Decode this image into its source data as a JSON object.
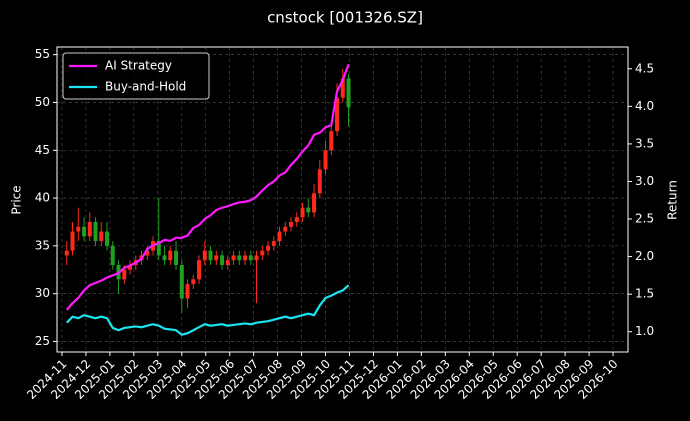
{
  "chart_data": {
    "type": "candlestick",
    "title": "cnstock [001326.SZ]",
    "ylabel": "Price",
    "y2label": "Return",
    "x": [
      2024.85,
      2024.87,
      2024.89,
      2024.91,
      2024.93,
      2024.95,
      2024.97,
      2024.99,
      2025.01,
      2025.03,
      2025.05,
      2025.07,
      2025.09,
      2025.11,
      2025.13,
      2025.15,
      2025.17,
      2025.19,
      2025.21,
      2025.23,
      2025.25,
      2025.27,
      2025.29,
      2025.31,
      2025.33,
      2025.35,
      2025.37,
      2025.39,
      2025.41,
      2025.43,
      2025.45,
      2025.47,
      2025.49,
      2025.51,
      2025.53,
      2025.55,
      2025.57,
      2025.59,
      2025.61,
      2025.63,
      2025.65,
      2025.67,
      2025.69,
      2025.71,
      2025.73,
      2025.75,
      2025.77,
      2025.79,
      2025.81,
      2025.83
    ],
    "open": [
      34.0,
      34.5,
      36.5,
      37.0,
      36.0,
      37.5,
      35.5,
      36.5,
      35.0,
      33.0,
      31.5,
      32.5,
      33.0,
      33.5,
      34.0,
      34.5,
      35.5,
      34.0,
      33.5,
      34.5,
      33.0,
      29.5,
      31.0,
      31.5,
      33.5,
      34.5,
      33.5,
      34.0,
      33.0,
      33.5,
      34.0,
      33.5,
      34.0,
      33.5,
      34.0,
      34.5,
      35.0,
      35.5,
      36.5,
      37.0,
      37.5,
      38.0,
      39.0,
      38.5,
      40.5,
      43.0,
      45.0,
      47.0,
      50.5,
      52.5
    ],
    "high": [
      35.5,
      37.5,
      39.0,
      38.0,
      38.5,
      38.0,
      37.5,
      37.5,
      35.5,
      33.5,
      33.0,
      33.5,
      34.0,
      34.5,
      35.0,
      36.0,
      40.0,
      35.0,
      35.0,
      35.5,
      33.5,
      31.5,
      32.0,
      34.0,
      35.5,
      35.0,
      34.5,
      34.5,
      34.0,
      34.5,
      34.5,
      34.5,
      34.5,
      34.5,
      35.0,
      35.5,
      36.0,
      37.0,
      37.5,
      38.0,
      38.5,
      39.5,
      40.0,
      41.5,
      44.0,
      46.0,
      48.0,
      52.0,
      53.5,
      53.0
    ],
    "low": [
      33.0,
      34.0,
      35.5,
      35.5,
      35.5,
      35.0,
      35.0,
      34.5,
      32.5,
      30.0,
      31.0,
      32.0,
      32.5,
      33.0,
      33.5,
      34.0,
      33.5,
      33.0,
      33.0,
      32.5,
      28.0,
      28.5,
      30.5,
      31.0,
      33.0,
      33.0,
      33.0,
      32.5,
      32.5,
      33.0,
      33.0,
      33.0,
      33.0,
      29.0,
      33.5,
      34.0,
      34.5,
      35.0,
      36.0,
      36.5,
      37.0,
      37.5,
      38.0,
      38.0,
      40.0,
      42.5,
      44.5,
      46.5,
      50.0,
      47.5
    ],
    "close": [
      34.5,
      36.5,
      37.0,
      36.0,
      37.5,
      35.5,
      36.5,
      35.0,
      33.0,
      31.5,
      32.5,
      33.0,
      33.5,
      34.0,
      34.5,
      35.5,
      34.0,
      33.5,
      34.5,
      33.0,
      29.5,
      31.0,
      31.5,
      33.5,
      34.5,
      33.5,
      34.0,
      33.0,
      33.5,
      34.0,
      33.5,
      34.0,
      33.5,
      34.0,
      34.5,
      35.0,
      35.5,
      36.5,
      37.0,
      37.5,
      38.0,
      39.0,
      38.5,
      40.5,
      43.0,
      45.0,
      47.0,
      50.5,
      52.5,
      49.5
    ],
    "up_color": "#ff2a1a",
    "down_color": "#1fa11f",
    "series": [
      {
        "name": "AI Strategy",
        "color": "#ff1aff",
        "axis": "y2",
        "values": [
          1.29,
          1.38,
          1.45,
          1.55,
          1.62,
          1.65,
          1.68,
          1.72,
          1.75,
          1.78,
          1.85,
          1.88,
          1.92,
          1.97,
          2.1,
          2.15,
          2.18,
          2.22,
          2.21,
          2.25,
          2.25,
          2.28,
          2.38,
          2.42,
          2.5,
          2.55,
          2.62,
          2.65,
          2.67,
          2.7,
          2.72,
          2.73,
          2.75,
          2.8,
          2.88,
          2.95,
          3.0,
          3.08,
          3.12,
          3.22,
          3.3,
          3.4,
          3.48,
          3.62,
          3.65,
          3.72,
          3.75,
          4.2,
          4.35,
          4.56
        ]
      },
      {
        "name": "Buy-and-Hold",
        "color": "#1ae5f0",
        "axis": "y2",
        "values": [
          1.12,
          1.2,
          1.18,
          1.22,
          1.2,
          1.18,
          1.2,
          1.18,
          1.05,
          1.02,
          1.05,
          1.06,
          1.07,
          1.06,
          1.08,
          1.1,
          1.08,
          1.04,
          1.03,
          1.02,
          0.96,
          0.98,
          1.02,
          1.06,
          1.1,
          1.08,
          1.09,
          1.1,
          1.08,
          1.09,
          1.1,
          1.11,
          1.1,
          1.12,
          1.13,
          1.14,
          1.16,
          1.18,
          1.2,
          1.18,
          1.2,
          1.22,
          1.24,
          1.22,
          1.35,
          1.45,
          1.48,
          1.52,
          1.55,
          1.62
        ]
      }
    ],
    "xlim": [
      2024.816,
      2026.802
    ],
    "xticks": [
      {
        "value": 2024.8333,
        "label": "2024-11"
      },
      {
        "value": 2024.9167,
        "label": "2024-12"
      },
      {
        "value": 2025.0,
        "label": "2025-01"
      },
      {
        "value": 2025.0833,
        "label": "2025-02"
      },
      {
        "value": 2025.1667,
        "label": "2025-03"
      },
      {
        "value": 2025.25,
        "label": "2025-04"
      },
      {
        "value": 2025.3333,
        "label": "2025-05"
      },
      {
        "value": 2025.4167,
        "label": "2025-06"
      },
      {
        "value": 2025.5,
        "label": "2025-07"
      },
      {
        "value": 2025.5833,
        "label": "2025-08"
      },
      {
        "value": 2025.6667,
        "label": "2025-09"
      },
      {
        "value": 2025.75,
        "label": "2025-10"
      },
      {
        "value": 2025.8333,
        "label": "2025-11"
      },
      {
        "value": 2025.9167,
        "label": "2025-12"
      },
      {
        "value": 2026.0,
        "label": "2026-01"
      },
      {
        "value": 2026.0833,
        "label": "2026-02"
      },
      {
        "value": 2026.1667,
        "label": "2026-03"
      },
      {
        "value": 2026.25,
        "label": "2026-04"
      },
      {
        "value": 2026.3333,
        "label": "2026-05"
      },
      {
        "value": 2026.4167,
        "label": "2026-06"
      },
      {
        "value": 2026.5,
        "label": "2026-07"
      },
      {
        "value": 2026.5833,
        "label": "2026-08"
      },
      {
        "value": 2026.6667,
        "label": "2026-09"
      },
      {
        "value": 2026.75,
        "label": "2026-10"
      }
    ],
    "ylim": [
      23.9,
      55.8
    ],
    "yticks": [
      25,
      30,
      35,
      40,
      45,
      50,
      55
    ],
    "y2lim": [
      0.73,
      4.79
    ],
    "y2ticks": [
      {
        "value": 1.0,
        "label": "1.0"
      },
      1.5,
      {
        "value": 2.0,
        "label": "2.0"
      },
      2.5,
      {
        "value": 3.0,
        "label": "3.0"
      },
      3.5,
      {
        "value": 4.0,
        "label": "4.0"
      },
      4.5
    ],
    "grid": true,
    "legend": "upper left"
  }
}
